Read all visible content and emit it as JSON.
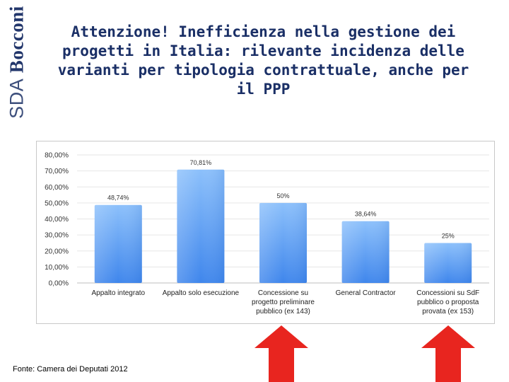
{
  "logo": {
    "sda": "SDA",
    "bocconi": "Bocconi"
  },
  "title_lines": [
    "Attenzione! Inefficienza nella gestione dei",
    "progetti in Italia: rilevante incidenza delle",
    "varianti per tipologia contrattuale, anche per",
    "il PPP"
  ],
  "chart_data": {
    "type": "bar",
    "title": "",
    "xlabel": "",
    "ylabel": "",
    "ylim": [
      0,
      80
    ],
    "y_ticks": [
      0,
      10,
      20,
      30,
      40,
      50,
      60,
      70,
      80
    ],
    "y_tick_labels": [
      "0,00%",
      "10,00%",
      "20,00%",
      "30,00%",
      "40,00%",
      "50,00%",
      "60,00%",
      "70,00%",
      "80,00%"
    ],
    "grid": true,
    "categories": [
      [
        "Appalto integrato"
      ],
      [
        "Appalto solo esecuzione"
      ],
      [
        "Concessione su",
        "progetto preliminare",
        "pubblico (ex 143)"
      ],
      [
        "General Contractor"
      ],
      [
        "Concessioni su SdF",
        "pubblico o proposta",
        "provata (ex 153)"
      ]
    ],
    "values": [
      48.74,
      70.81,
      50,
      38.64,
      25
    ],
    "data_labels": [
      "48,74%",
      "70,81%",
      "50%",
      "38,64%",
      "25%"
    ],
    "bar_color": "#5b9bef",
    "highlighted_categories": [
      2,
      4
    ]
  },
  "source": "Fonte: Camera dei Deputati 2012",
  "arrow_color": "#e8251f"
}
